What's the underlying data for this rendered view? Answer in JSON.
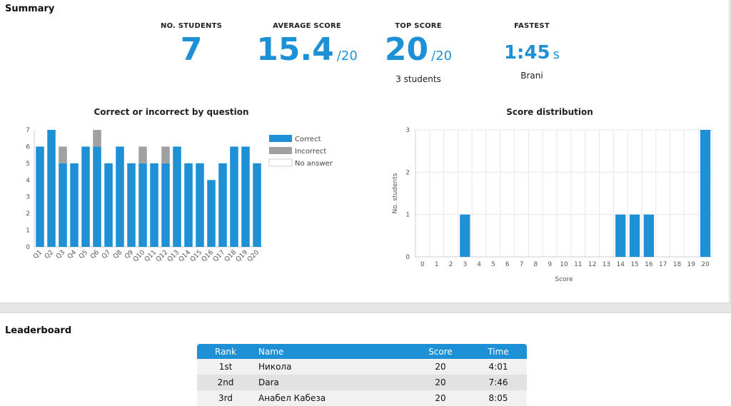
{
  "summary": {
    "title": "Summary",
    "students": {
      "label": "NO. STUDENTS",
      "value": "7"
    },
    "average": {
      "label": "AVERAGE SCORE",
      "value": "15.4",
      "denom": "/20"
    },
    "top": {
      "label": "TOP SCORE",
      "value": "20",
      "denom": "/20",
      "sub": "3 students"
    },
    "fastest": {
      "label": "FASTEST",
      "value": "1:45",
      "unit": "s",
      "sub": "Brani"
    }
  },
  "colors": {
    "accent": "#1e90d6",
    "incorrect": "#a0a0a0",
    "no_answer": "#ffffff"
  },
  "chart_data": [
    {
      "type": "bar",
      "stacked": true,
      "title": "Correct or incorrect by question",
      "categories": [
        "Q1",
        "Q2",
        "Q3",
        "Q4",
        "Q5",
        "Q6",
        "Q7",
        "Q8",
        "Q9",
        "Q10",
        "Q11",
        "Q12",
        "Q13",
        "Q14",
        "Q15",
        "Q16",
        "Q17",
        "Q18",
        "Q19",
        "Q20"
      ],
      "series": [
        {
          "name": "Correct",
          "color": "#1e90d6",
          "values": [
            6,
            7,
            5,
            5,
            6,
            6,
            5,
            6,
            5,
            5,
            5,
            5,
            6,
            5,
            5,
            4,
            5,
            6,
            6,
            5
          ]
        },
        {
          "name": "Incorrect",
          "color": "#a0a0a0",
          "values": [
            0,
            0,
            1,
            0,
            0,
            1,
            0,
            0,
            0,
            1,
            0,
            1,
            0,
            0,
            0,
            0,
            0,
            0,
            0,
            0
          ]
        },
        {
          "name": "No answer",
          "color": "#ffffff",
          "values": [
            0,
            0,
            0,
            0,
            0,
            0,
            0,
            0,
            0,
            0,
            0,
            0,
            0,
            0,
            0,
            0,
            0,
            0,
            0,
            0
          ]
        }
      ],
      "ylim": [
        0,
        7
      ],
      "yticks": [
        "0",
        "1",
        "2",
        "3",
        "4",
        "5",
        "6",
        "7"
      ],
      "legend": "right",
      "grid": false
    },
    {
      "type": "bar",
      "title": "Score distribution",
      "xlabel": "Score",
      "ylabel": "No. students",
      "categories": [
        "0",
        "1",
        "2",
        "3",
        "4",
        "5",
        "6",
        "7",
        "8",
        "9",
        "10",
        "11",
        "12",
        "13",
        "14",
        "15",
        "16",
        "17",
        "18",
        "19",
        "20"
      ],
      "values": [
        0,
        0,
        0,
        1,
        0,
        0,
        0,
        0,
        0,
        0,
        0,
        0,
        0,
        0,
        1,
        1,
        1,
        0,
        0,
        0,
        3
      ],
      "ylim": [
        0,
        3
      ],
      "yticks": [
        "0",
        "1",
        "2",
        "3"
      ],
      "grid": true
    }
  ],
  "leaderboard": {
    "title": "Leaderboard",
    "headers": {
      "rank": "Rank",
      "name": "Name",
      "score": "Score",
      "time": "Time"
    },
    "rows": [
      {
        "rank": "1st",
        "name": "Никола",
        "score": "20",
        "time": "4:01"
      },
      {
        "rank": "2nd",
        "name": "Dara",
        "score": "20",
        "time": "7:46"
      },
      {
        "rank": "3rd",
        "name": "Анабел Кабеза",
        "score": "20",
        "time": "8:05"
      }
    ]
  }
}
